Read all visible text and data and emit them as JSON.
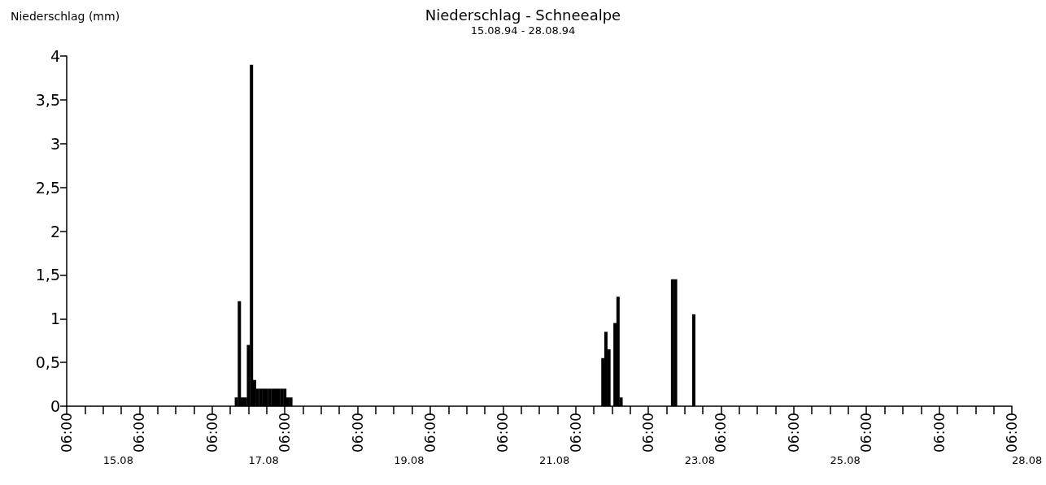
{
  "chart_data": {
    "type": "bar",
    "title": "Niederschlag - Schneealpe",
    "subtitle": "15.08.94 - 28.08.94",
    "ylabel": "Niederschlag (mm)",
    "x": [
      "--08-17T14:00",
      "--08-17T15:00",
      "--08-17T16:00",
      "--08-17T17:00",
      "--08-17T18:00",
      "--08-17T19:00",
      "--08-17T20:00",
      "--08-17T21:00",
      "--08-17T22:00",
      "--08-17T23:00",
      "--08-18T00:00",
      "--08-18T01:00",
      "--08-18T02:00",
      "--08-18T03:00",
      "--08-18T04:00",
      "--08-18T05:00",
      "--08-18T06:00",
      "--08-18T07:00",
      "--08-18T08:00",
      "--08-22T15:00",
      "--08-22T16:00",
      "--08-22T17:00",
      "--08-22T19:00",
      "--08-22T20:00",
      "--08-22T21:00",
      "--08-23T14:00",
      "--08-23T15:00",
      "--08-23T21:00"
    ],
    "values": [
      0.1,
      1.2,
      0.1,
      0.1,
      0.7,
      3.9,
      0.3,
      0.2,
      0.2,
      0.2,
      0.2,
      0.2,
      0.2,
      0.2,
      0.2,
      0.2,
      0.2,
      0.1,
      0.1,
      0.55,
      0.85,
      0.65,
      0.95,
      1.25,
      0.1,
      1.45,
      1.45,
      1.05
    ],
    "color": "#000000",
    "xlim": [
      "--08-15T06:00",
      "--08-28T06:00"
    ],
    "xticks": [
      {
        "value": "--08-15T06:00",
        "label": "06:00"
      },
      {
        "value": "--08-15T12:00",
        "label": null
      },
      {
        "value": "--08-15T18:00",
        "label": null
      },
      {
        "value": "--08-16T00:00",
        "label": null
      },
      {
        "value": "--08-16T06:00",
        "label": "06:00"
      },
      {
        "value": "--08-16T12:00",
        "label": null
      },
      {
        "value": "--08-16T18:00",
        "label": null
      },
      {
        "value": "--08-17T00:00",
        "label": null
      },
      {
        "value": "--08-17T06:00",
        "label": "06:00"
      },
      {
        "value": "--08-17T12:00",
        "label": null
      },
      {
        "value": "--08-17T18:00",
        "label": null
      },
      {
        "value": "--08-18T00:00",
        "label": null
      },
      {
        "value": "--08-18T06:00",
        "label": "06:00"
      },
      {
        "value": "--08-18T12:00",
        "label": null
      },
      {
        "value": "--08-18T18:00",
        "label": null
      },
      {
        "value": "--08-19T00:00",
        "label": null
      },
      {
        "value": "--08-19T06:00",
        "label": "06:00"
      },
      {
        "value": "--08-19T12:00",
        "label": null
      },
      {
        "value": "--08-19T18:00",
        "label": null
      },
      {
        "value": "--08-20T00:00",
        "label": null
      },
      {
        "value": "--08-20T06:00",
        "label": "06:00"
      },
      {
        "value": "--08-20T12:00",
        "label": null
      },
      {
        "value": "--08-20T18:00",
        "label": null
      },
      {
        "value": "--08-21T00:00",
        "label": null
      },
      {
        "value": "--08-21T06:00",
        "label": "06:00"
      },
      {
        "value": "--08-21T12:00",
        "label": null
      },
      {
        "value": "--08-21T18:00",
        "label": null
      },
      {
        "value": "--08-22T00:00",
        "label": null
      },
      {
        "value": "--08-22T06:00",
        "label": "06:00"
      },
      {
        "value": "--08-22T12:00",
        "label": null
      },
      {
        "value": "--08-22T18:00",
        "label": null
      },
      {
        "value": "--08-23T00:00",
        "label": null
      },
      {
        "value": "--08-23T06:00",
        "label": "06:00"
      },
      {
        "value": "--08-23T12:00",
        "label": null
      },
      {
        "value": "--08-23T18:00",
        "label": null
      },
      {
        "value": "--08-24T00:00",
        "label": null
      },
      {
        "value": "--08-24T06:00",
        "label": "06:00"
      },
      {
        "value": "--08-24T12:00",
        "label": null
      },
      {
        "value": "--08-24T18:00",
        "label": null
      },
      {
        "value": "--08-25T00:00",
        "label": null
      },
      {
        "value": "--08-25T06:00",
        "label": "06:00"
      },
      {
        "value": "--08-25T12:00",
        "label": null
      },
      {
        "value": "--08-25T18:00",
        "label": null
      },
      {
        "value": "--08-26T00:00",
        "label": null
      },
      {
        "value": "--08-26T06:00",
        "label": "06:00"
      },
      {
        "value": "--08-26T12:00",
        "label": null
      },
      {
        "value": "--08-26T18:00",
        "label": null
      },
      {
        "value": "--08-27T00:00",
        "label": null
      },
      {
        "value": "--08-27T06:00",
        "label": "06:00"
      },
      {
        "value": "--08-27T12:00",
        "label": null
      },
      {
        "value": "--08-27T18:00",
        "label": null
      },
      {
        "value": "--08-28T00:00",
        "label": null
      },
      {
        "value": "--08-28T06:00",
        "label": "06:00"
      }
    ],
    "x2lim": [
      "--08-15T18:00",
      "--08-28T06:00"
    ],
    "x2ticks": [
      {
        "value": "--08-15T18:00",
        "label": "15.08"
      },
      {
        "value": "--08-17T18:00",
        "label": "17.08"
      },
      {
        "value": "--08-19T18:00",
        "label": "19.08"
      },
      {
        "value": "--08-21T18:00",
        "label": "21.08"
      },
      {
        "value": "--08-23T18:00",
        "label": "23.08"
      },
      {
        "value": "--08-25T18:00",
        "label": "25.08"
      },
      {
        "value": "--08-28T06:00",
        "label": "28.08"
      }
    ],
    "ylim": [
      0,
      4
    ],
    "yticks": [
      0,
      {
        "value": 0.5,
        "label": "0,5"
      },
      1,
      {
        "value": 1.5,
        "label": "1,5"
      },
      2,
      {
        "value": 2.5,
        "label": "2,5"
      },
      3,
      {
        "value": 3.5,
        "label": "3,5"
      },
      4
    ],
    "grid": false
  }
}
